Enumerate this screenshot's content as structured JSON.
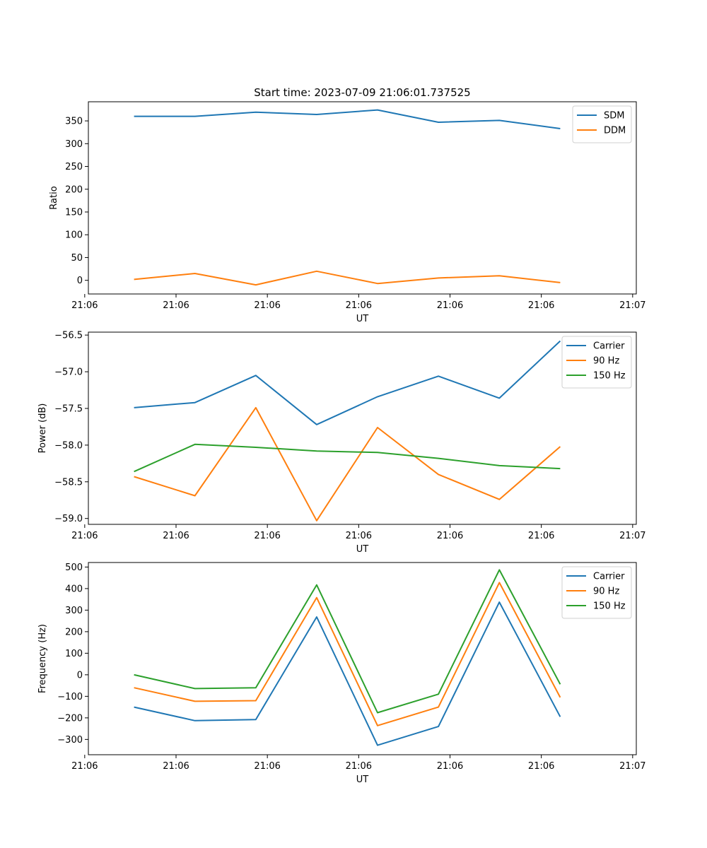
{
  "chart_data": [
    {
      "type": "line",
      "title": "Start time: 2023-07-09 21:06:01.737525",
      "xlabel": "UT",
      "ylabel": "Ratio",
      "x": [
        1,
        2,
        3,
        4,
        5,
        6,
        7,
        8
      ],
      "xlim": [
        0.25,
        9.25
      ],
      "xticks": [
        0.19,
        1.69,
        3.19,
        4.69,
        6.19,
        7.69,
        9.19
      ],
      "xtick_labels": [
        "21:06",
        "21:06",
        "21:06",
        "21:06",
        "21:06",
        "21:06",
        "21:07"
      ],
      "ylim": [
        -30,
        392
      ],
      "yticks": [
        0,
        50,
        100,
        150,
        200,
        250,
        300,
        350
      ],
      "ytick_labels": [
        "0",
        "50",
        "100",
        "150",
        "200",
        "250",
        "300",
        "350"
      ],
      "legend_position": "top-right",
      "series": [
        {
          "name": "SDM",
          "color": "#1f77b4",
          "values": [
            360,
            360,
            369,
            364,
            374,
            347,
            351,
            333
          ]
        },
        {
          "name": "DDM",
          "color": "#ff7f0e",
          "values": [
            2,
            15,
            -10,
            20,
            -7,
            5,
            10,
            -5
          ]
        }
      ]
    },
    {
      "type": "line",
      "title": "",
      "xlabel": "UT",
      "ylabel": "Power (dB)",
      "x": [
        1,
        2,
        3,
        4,
        5,
        6,
        7,
        8
      ],
      "xlim": [
        0.25,
        9.25
      ],
      "xticks": [
        0.19,
        1.69,
        3.19,
        4.69,
        6.19,
        7.69,
        9.19
      ],
      "xtick_labels": [
        "21:06",
        "21:06",
        "21:06",
        "21:06",
        "21:06",
        "21:06",
        "21:07"
      ],
      "ylim": [
        -59.08,
        -56.46
      ],
      "yticks": [
        -59.0,
        -58.5,
        -58.0,
        -57.5,
        -57.0,
        -56.5
      ],
      "ytick_labels": [
        "−59.0",
        "−58.5",
        "−58.0",
        "−57.5",
        "−57.0",
        "−56.5"
      ],
      "legend_position": "top-right",
      "series": [
        {
          "name": "Carrier",
          "color": "#1f77b4",
          "values": [
            -57.49,
            -57.42,
            -57.05,
            -57.72,
            -57.34,
            -57.06,
            -57.36,
            -56.58
          ]
        },
        {
          "name": "90 Hz",
          "color": "#ff7f0e",
          "values": [
            -58.43,
            -58.69,
            -57.49,
            -59.03,
            -57.76,
            -58.4,
            -58.74,
            -58.02
          ]
        },
        {
          "name": "150 Hz",
          "color": "#2ca02c",
          "values": [
            -58.36,
            -57.99,
            -58.03,
            -58.08,
            -58.1,
            -58.18,
            -58.28,
            -58.32
          ]
        }
      ]
    },
    {
      "type": "line",
      "title": "",
      "xlabel": "UT",
      "ylabel": "Frequency (Hz)",
      "x": [
        1,
        2,
        3,
        4,
        5,
        6,
        7,
        8
      ],
      "xlim": [
        0.25,
        9.25
      ],
      "xticks": [
        0.19,
        1.69,
        3.19,
        4.69,
        6.19,
        7.69,
        9.19
      ],
      "xtick_labels": [
        "21:06",
        "21:06",
        "21:06",
        "21:06",
        "21:06",
        "21:06",
        "21:07"
      ],
      "ylim": [
        -371,
        521
      ],
      "yticks": [
        -300,
        -200,
        -100,
        0,
        100,
        200,
        300,
        400,
        500
      ],
      "ytick_labels": [
        "−300",
        "−200",
        "−100",
        "0",
        "100",
        "200",
        "300",
        "400",
        "500"
      ],
      "legend_position": "top-right",
      "series": [
        {
          "name": "Carrier",
          "color": "#1f77b4",
          "values": [
            -150,
            -213,
            -208,
            268,
            -327,
            -240,
            337,
            -195
          ]
        },
        {
          "name": "90 Hz",
          "color": "#ff7f0e",
          "values": [
            -60,
            -123,
            -120,
            358,
            -236,
            -150,
            428,
            -105
          ]
        },
        {
          "name": "150 Hz",
          "color": "#2ca02c",
          "values": [
            0,
            -64,
            -60,
            417,
            -176,
            -90,
            487,
            -44
          ]
        }
      ]
    }
  ]
}
